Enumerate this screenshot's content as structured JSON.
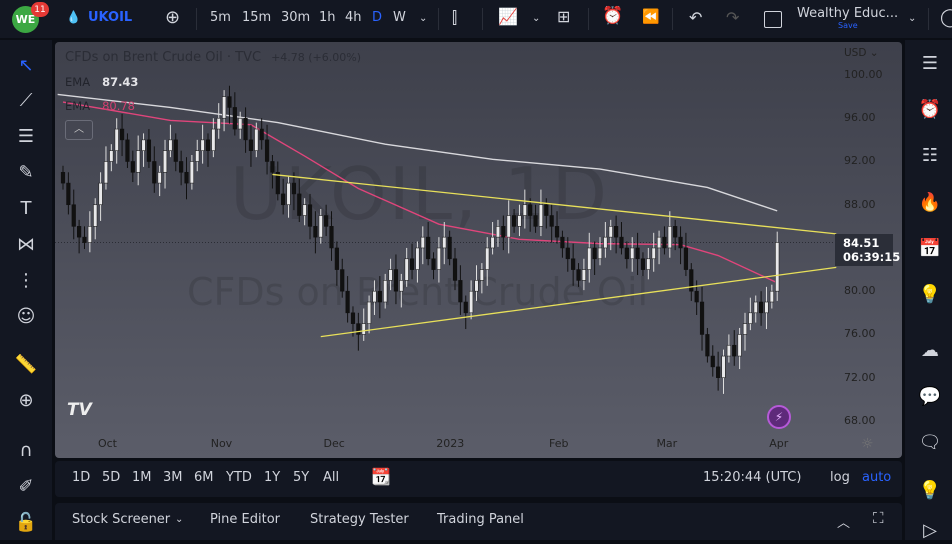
{
  "topbar": {
    "notifications": "11",
    "avatar_text": "WE",
    "symbol": "UKOIL",
    "intervals": [
      "5m",
      "15m",
      "30m",
      "1h",
      "4h",
      "D",
      "W"
    ],
    "active_interval": "D",
    "layout_name": "Wealthy Educ...",
    "save_label": "Save"
  },
  "chart": {
    "title": "CFDs on Brent Crude Oil · TVC",
    "change": "+4.78 (+6.00%)",
    "ema1_label": "EMA",
    "ema1_value": "87.43",
    "ema2_label": "EMA",
    "ema2_value": "80.78",
    "watermark_symbol": "UKOIL, 1D",
    "watermark_name": "CFDs on Brent Crude Oil",
    "currency": "USD",
    "last_price": "84.51",
    "countdown": "06:39:15"
  },
  "colors": {
    "accent": "#2962ff",
    "ema_fast": "#e0457b",
    "ema_slow": "#d8d8dc",
    "trendline": "#e8e05a",
    "up": "#e8e8ea",
    "down": "#111111"
  },
  "chart_data": {
    "type": "candlestick",
    "ylim": [
      66,
      102
    ],
    "price_ticks": [
      "100.00",
      "96.00",
      "92.00",
      "88.00",
      "80.00",
      "76.00",
      "72.00",
      "68.00"
    ],
    "time_ticks": [
      {
        "label": "Oct",
        "index": 8
      },
      {
        "label": "Nov",
        "index": 29
      },
      {
        "label": "Dec",
        "index": 50
      },
      {
        "label": "2023",
        "index": 71
      },
      {
        "label": "Feb",
        "index": 92
      },
      {
        "label": "Mar",
        "index": 112
      },
      {
        "label": "Apr",
        "index": 133
      }
    ],
    "closes": [
      90,
      88,
      86,
      85,
      84.5,
      86,
      88,
      90,
      92,
      93,
      95,
      94,
      92,
      91,
      93,
      94,
      92,
      90,
      91,
      93,
      94,
      92,
      91,
      90,
      92,
      93,
      94,
      93,
      95,
      96,
      98,
      97,
      95,
      96,
      94,
      93,
      95,
      94,
      92,
      91,
      89,
      88,
      90,
      89,
      87,
      88,
      86,
      85,
      87,
      86,
      84,
      82,
      80,
      78,
      77,
      76,
      77,
      79,
      80,
      79,
      81,
      82,
      80,
      81,
      83,
      82,
      84,
      85,
      83,
      82,
      84,
      85,
      83,
      81,
      79,
      78,
      80,
      81,
      82,
      84,
      85,
      86,
      85,
      87,
      86,
      87,
      88,
      87,
      86,
      88,
      87,
      86,
      85,
      84,
      83,
      82,
      81,
      82,
      84,
      83,
      84,
      85,
      86,
      85,
      84,
      83,
      84,
      83,
      82,
      83,
      84,
      85,
      84,
      86,
      85,
      84,
      82,
      80,
      79,
      76,
      74,
      73,
      72,
      74,
      75,
      74,
      76,
      77,
      78,
      79,
      78,
      79,
      80,
      84.51
    ],
    "ema_slow": [
      [
        -1,
        98.2
      ],
      [
        20,
        97
      ],
      [
        40,
        95.6
      ],
      [
        60,
        93.6
      ],
      [
        80,
        92.2
      ],
      [
        100,
        91.3
      ],
      [
        120,
        89.6
      ],
      [
        133,
        87.43
      ]
    ],
    "ema_fast": [
      [
        0,
        97.5
      ],
      [
        20,
        95.8
      ],
      [
        35,
        95.4
      ],
      [
        45,
        92.5
      ],
      [
        55,
        89.5
      ],
      [
        70,
        86.2
      ],
      [
        85,
        84.8
      ],
      [
        100,
        84.4
      ],
      [
        115,
        84.3
      ],
      [
        122,
        83.3
      ],
      [
        133,
        80.78
      ]
    ],
    "trendlines": [
      {
        "from": [
          39,
          90.8
        ],
        "to": [
          144,
          85.3
        ]
      },
      {
        "from": [
          48,
          75.8
        ],
        "to": [
          144,
          82.2
        ]
      }
    ]
  },
  "range_bar": {
    "ranges": [
      "1D",
      "5D",
      "1M",
      "3M",
      "6M",
      "YTD",
      "1Y",
      "5Y",
      "All"
    ],
    "clock": "15:20:44 (UTC)",
    "log_label": "log",
    "auto_label": "auto"
  },
  "bottom_panel": {
    "tabs": [
      "Stock Screener",
      "Pine Editor",
      "Strategy Tester",
      "Trading Panel"
    ]
  }
}
